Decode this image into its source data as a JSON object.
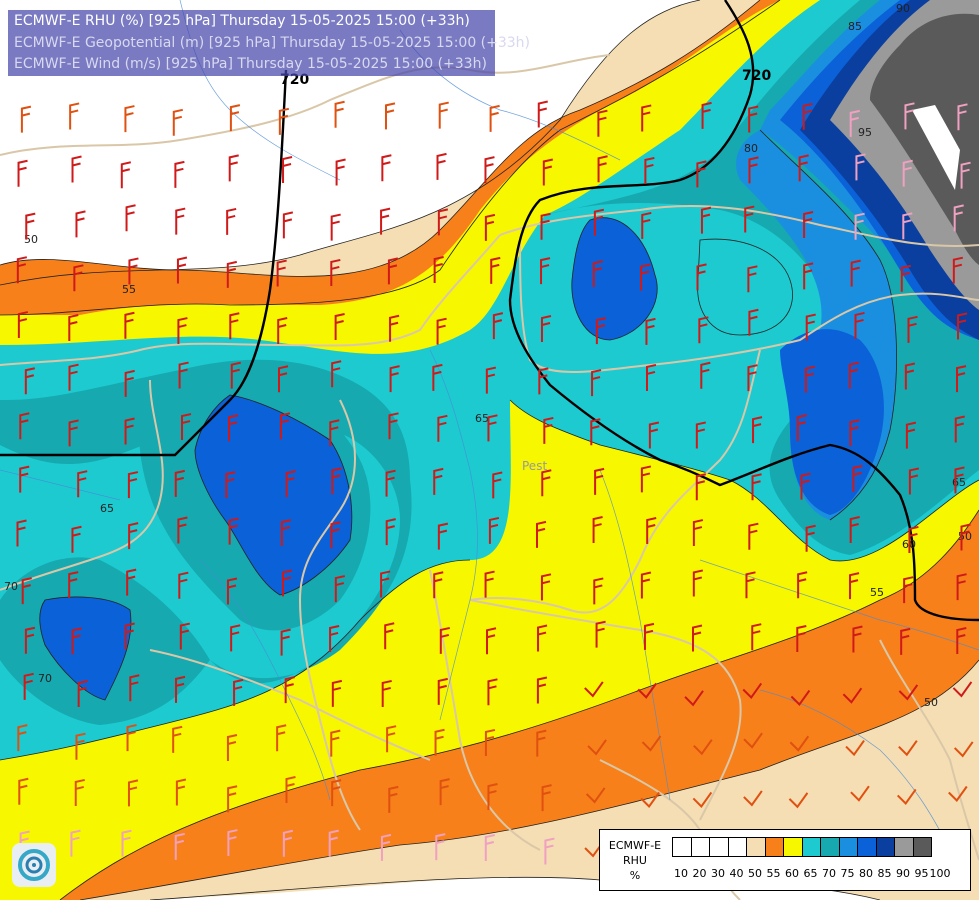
{
  "title": {
    "line1": "ECMWF-E RHU (%) [925 hPa] Thursday 15-05-2025 15:00 (+33h)",
    "line2": "ECMWF-E Geopotential (m) [925 hPa] Thursday 15-05-2025 15:00 (+33h)",
    "line3": "ECMWF-E Wind (m/s) [925 hPa] Thursday 15-05-2025 15:00 (+33h)"
  },
  "map_labels": {
    "city": "Pest",
    "rhu_contours": [
      "50",
      "55",
      "65",
      "65",
      "70",
      "70",
      "80",
      "85",
      "90",
      "95",
      "65",
      "60",
      "55",
      "50",
      "50"
    ],
    "geopotential_contours": [
      "720",
      "720"
    ]
  },
  "legend": {
    "title_line1": "ECMWF-E",
    "title_line2": "RHU",
    "title_line3": "%",
    "ticks": [
      "10",
      "20",
      "30",
      "40",
      "50",
      "55",
      "60",
      "65",
      "70",
      "75",
      "80",
      "85",
      "90",
      "95",
      "100"
    ],
    "colors": [
      "#ffffff",
      "#ffffff",
      "#ffffff",
      "#ffffff",
      "#f5deb3",
      "#f7801a",
      "#f7f700",
      "#1ccad0",
      "#16a9b0",
      "#1a8fe0",
      "#0b61d8",
      "#0b3f9f",
      "#9a9a9a",
      "#5a5a5a"
    ]
  },
  "colors": {
    "white": "#ffffff",
    "wheat": "#f5deb3",
    "orange": "#f7801a",
    "yellow": "#f7f700",
    "cyan": "#1ccad0",
    "teal": "#16a9b0",
    "blue": "#0b61d8",
    "navy": "#0b3f9f",
    "grey": "#9a9a9a",
    "darkgrey": "#5a5a5a",
    "border": "#d9c7a8",
    "river": "#4a8bd6"
  }
}
